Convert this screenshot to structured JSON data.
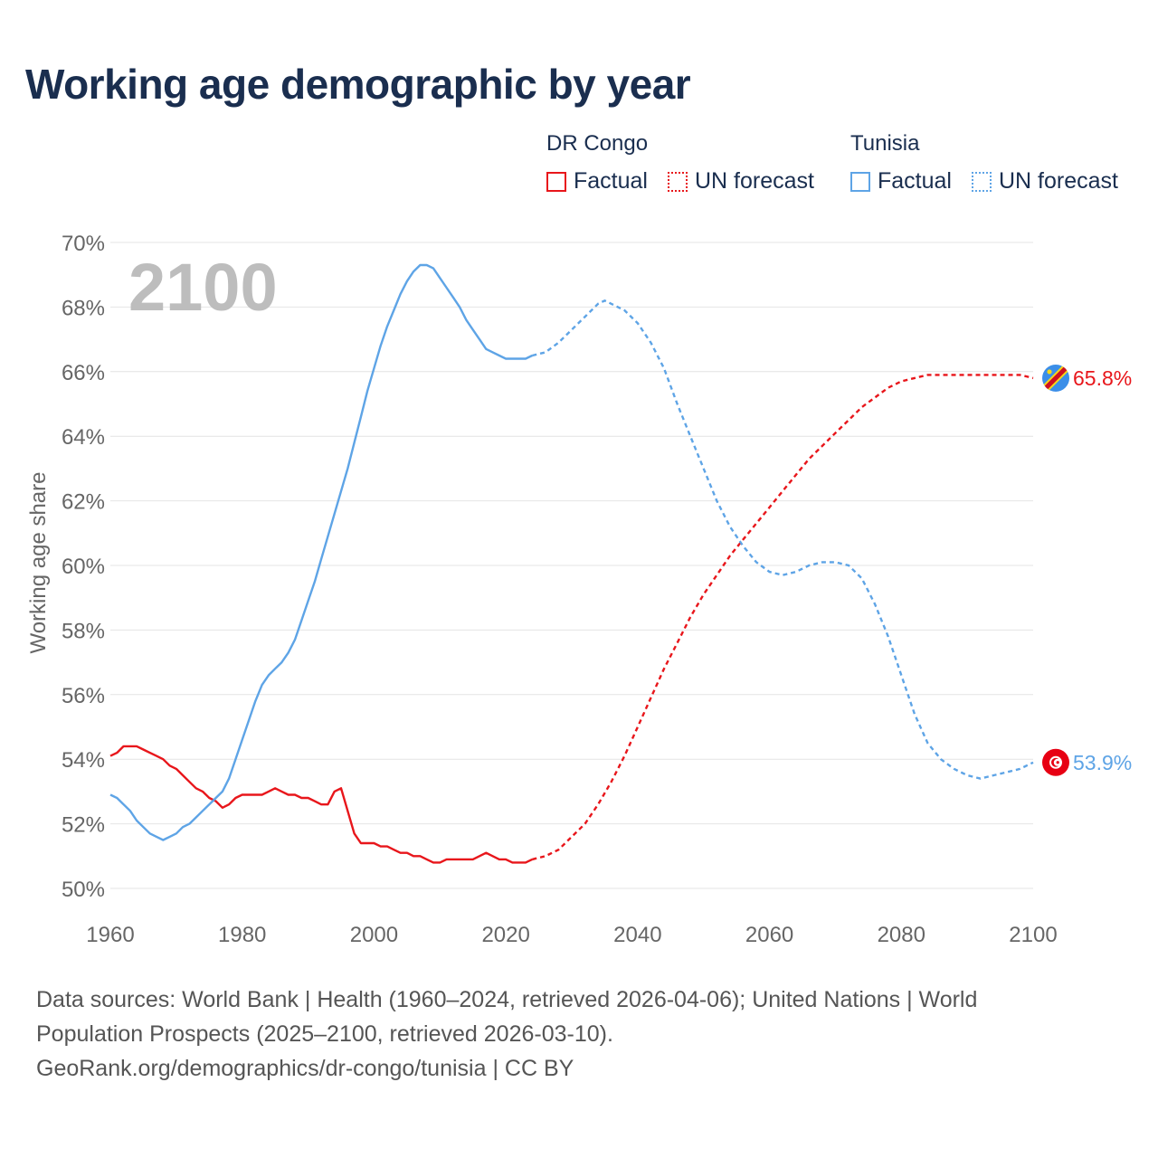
{
  "title": "Working age demographic by year",
  "legend": {
    "groups": [
      {
        "name": "DR Congo",
        "color": "#e8161b",
        "items": [
          {
            "label": "Factual",
            "style": "solid"
          },
          {
            "label": "UN forecast",
            "style": "dotted"
          }
        ]
      },
      {
        "name": "Tunisia",
        "color": "#5ea4e6",
        "items": [
          {
            "label": "Factual",
            "style": "solid"
          },
          {
            "label": "UN forecast",
            "style": "dotted"
          }
        ]
      }
    ]
  },
  "year_watermark": "2100",
  "sources": {
    "line1": "Data sources: World Bank | Health (1960–2024, retrieved 2026-04-06); United Nations | World",
    "line2": "Population Prospects (2025–2100, retrieved 2026-03-10).",
    "line3": "GeoRank.org/demographics/dr-congo/tunisia | CC BY"
  },
  "chart_data": {
    "type": "line",
    "title": "Working age demographic by year",
    "xlabel": "",
    "ylabel": "Working age share",
    "xlim": [
      1960,
      2100
    ],
    "ylim": [
      50,
      70
    ],
    "x_ticks": [
      1960,
      1980,
      2000,
      2020,
      2040,
      2060,
      2080,
      2100
    ],
    "y_ticks": [
      50,
      52,
      54,
      56,
      58,
      60,
      62,
      64,
      66,
      68,
      70
    ],
    "y_tick_suffix": "%",
    "grid": true,
    "forecast_start": 2024,
    "series": [
      {
        "name": "DR Congo",
        "color": "#e8161b",
        "end_label": "65.8%",
        "flag": "dr-congo-flag",
        "factual": [
          [
            1960,
            54.1
          ],
          [
            1961,
            54.2
          ],
          [
            1962,
            54.4
          ],
          [
            1963,
            54.4
          ],
          [
            1964,
            54.4
          ],
          [
            1965,
            54.3
          ],
          [
            1966,
            54.2
          ],
          [
            1967,
            54.1
          ],
          [
            1968,
            54.0
          ],
          [
            1969,
            53.8
          ],
          [
            1970,
            53.7
          ],
          [
            1971,
            53.5
          ],
          [
            1972,
            53.3
          ],
          [
            1973,
            53.1
          ],
          [
            1974,
            53.0
          ],
          [
            1975,
            52.8
          ],
          [
            1976,
            52.7
          ],
          [
            1977,
            52.5
          ],
          [
            1978,
            52.6
          ],
          [
            1979,
            52.8
          ],
          [
            1980,
            52.9
          ],
          [
            1981,
            52.9
          ],
          [
            1982,
            52.9
          ],
          [
            1983,
            52.9
          ],
          [
            1984,
            53.0
          ],
          [
            1985,
            53.1
          ],
          [
            1986,
            53.0
          ],
          [
            1987,
            52.9
          ],
          [
            1988,
            52.9
          ],
          [
            1989,
            52.8
          ],
          [
            1990,
            52.8
          ],
          [
            1991,
            52.7
          ],
          [
            1992,
            52.6
          ],
          [
            1993,
            52.6
          ],
          [
            1994,
            53.0
          ],
          [
            1995,
            53.1
          ],
          [
            1996,
            52.4
          ],
          [
            1997,
            51.7
          ],
          [
            1998,
            51.4
          ],
          [
            1999,
            51.4
          ],
          [
            2000,
            51.4
          ],
          [
            2001,
            51.3
          ],
          [
            2002,
            51.3
          ],
          [
            2003,
            51.2
          ],
          [
            2004,
            51.1
          ],
          [
            2005,
            51.1
          ],
          [
            2006,
            51.0
          ],
          [
            2007,
            51.0
          ],
          [
            2008,
            50.9
          ],
          [
            2009,
            50.8
          ],
          [
            2010,
            50.8
          ],
          [
            2011,
            50.9
          ],
          [
            2012,
            50.9
          ],
          [
            2013,
            50.9
          ],
          [
            2014,
            50.9
          ],
          [
            2015,
            50.9
          ],
          [
            2016,
            51.0
          ],
          [
            2017,
            51.1
          ],
          [
            2018,
            51.0
          ],
          [
            2019,
            50.9
          ],
          [
            2020,
            50.9
          ],
          [
            2021,
            50.8
          ],
          [
            2022,
            50.8
          ],
          [
            2023,
            50.8
          ],
          [
            2024,
            50.9
          ]
        ],
        "forecast": [
          [
            2024,
            50.9
          ],
          [
            2026,
            51.0
          ],
          [
            2028,
            51.2
          ],
          [
            2030,
            51.6
          ],
          [
            2032,
            52.0
          ],
          [
            2034,
            52.6
          ],
          [
            2036,
            53.3
          ],
          [
            2038,
            54.1
          ],
          [
            2040,
            55.0
          ],
          [
            2042,
            55.9
          ],
          [
            2044,
            56.8
          ],
          [
            2046,
            57.6
          ],
          [
            2048,
            58.4
          ],
          [
            2050,
            59.1
          ],
          [
            2052,
            59.7
          ],
          [
            2054,
            60.3
          ],
          [
            2056,
            60.8
          ],
          [
            2058,
            61.3
          ],
          [
            2060,
            61.8
          ],
          [
            2062,
            62.3
          ],
          [
            2064,
            62.8
          ],
          [
            2066,
            63.3
          ],
          [
            2068,
            63.7
          ],
          [
            2070,
            64.1
          ],
          [
            2072,
            64.5
          ],
          [
            2074,
            64.9
          ],
          [
            2076,
            65.2
          ],
          [
            2078,
            65.5
          ],
          [
            2080,
            65.7
          ],
          [
            2082,
            65.8
          ],
          [
            2084,
            65.9
          ],
          [
            2086,
            65.9
          ],
          [
            2088,
            65.9
          ],
          [
            2090,
            65.9
          ],
          [
            2092,
            65.9
          ],
          [
            2094,
            65.9
          ],
          [
            2096,
            65.9
          ],
          [
            2098,
            65.9
          ],
          [
            2100,
            65.8
          ]
        ]
      },
      {
        "name": "Tunisia",
        "color": "#5ea4e6",
        "end_label": "53.9%",
        "flag": "tunisia-flag",
        "factual": [
          [
            1960,
            52.9
          ],
          [
            1961,
            52.8
          ],
          [
            1962,
            52.6
          ],
          [
            1963,
            52.4
          ],
          [
            1964,
            52.1
          ],
          [
            1965,
            51.9
          ],
          [
            1966,
            51.7
          ],
          [
            1967,
            51.6
          ],
          [
            1968,
            51.5
          ],
          [
            1969,
            51.6
          ],
          [
            1970,
            51.7
          ],
          [
            1971,
            51.9
          ],
          [
            1972,
            52.0
          ],
          [
            1973,
            52.2
          ],
          [
            1974,
            52.4
          ],
          [
            1975,
            52.6
          ],
          [
            1976,
            52.8
          ],
          [
            1977,
            53.0
          ],
          [
            1978,
            53.4
          ],
          [
            1979,
            54.0
          ],
          [
            1980,
            54.6
          ],
          [
            1981,
            55.2
          ],
          [
            1982,
            55.8
          ],
          [
            1983,
            56.3
          ],
          [
            1984,
            56.6
          ],
          [
            1985,
            56.8
          ],
          [
            1986,
            57.0
          ],
          [
            1987,
            57.3
          ],
          [
            1988,
            57.7
          ],
          [
            1989,
            58.3
          ],
          [
            1990,
            58.9
          ],
          [
            1991,
            59.5
          ],
          [
            1992,
            60.2
          ],
          [
            1993,
            60.9
          ],
          [
            1994,
            61.6
          ],
          [
            1995,
            62.3
          ],
          [
            1996,
            63.0
          ],
          [
            1997,
            63.8
          ],
          [
            1998,
            64.6
          ],
          [
            1999,
            65.4
          ],
          [
            2000,
            66.1
          ],
          [
            2001,
            66.8
          ],
          [
            2002,
            67.4
          ],
          [
            2003,
            67.9
          ],
          [
            2004,
            68.4
          ],
          [
            2005,
            68.8
          ],
          [
            2006,
            69.1
          ],
          [
            2007,
            69.3
          ],
          [
            2008,
            69.3
          ],
          [
            2009,
            69.2
          ],
          [
            2010,
            68.9
          ],
          [
            2011,
            68.6
          ],
          [
            2012,
            68.3
          ],
          [
            2013,
            68.0
          ],
          [
            2014,
            67.6
          ],
          [
            2015,
            67.3
          ],
          [
            2016,
            67.0
          ],
          [
            2017,
            66.7
          ],
          [
            2018,
            66.6
          ],
          [
            2019,
            66.5
          ],
          [
            2020,
            66.4
          ],
          [
            2021,
            66.4
          ],
          [
            2022,
            66.4
          ],
          [
            2023,
            66.4
          ],
          [
            2024,
            66.5
          ]
        ],
        "forecast": [
          [
            2024,
            66.5
          ],
          [
            2026,
            66.6
          ],
          [
            2028,
            66.9
          ],
          [
            2030,
            67.3
          ],
          [
            2032,
            67.7
          ],
          [
            2034,
            68.1
          ],
          [
            2035,
            68.2
          ],
          [
            2036,
            68.1
          ],
          [
            2038,
            67.9
          ],
          [
            2040,
            67.5
          ],
          [
            2042,
            66.9
          ],
          [
            2044,
            66.1
          ],
          [
            2046,
            65.0
          ],
          [
            2048,
            64.0
          ],
          [
            2050,
            63.0
          ],
          [
            2052,
            62.0
          ],
          [
            2054,
            61.2
          ],
          [
            2056,
            60.6
          ],
          [
            2058,
            60.1
          ],
          [
            2060,
            59.8
          ],
          [
            2062,
            59.7
          ],
          [
            2064,
            59.8
          ],
          [
            2066,
            60.0
          ],
          [
            2068,
            60.1
          ],
          [
            2070,
            60.1
          ],
          [
            2072,
            60.0
          ],
          [
            2074,
            59.6
          ],
          [
            2076,
            58.8
          ],
          [
            2078,
            57.8
          ],
          [
            2080,
            56.6
          ],
          [
            2082,
            55.4
          ],
          [
            2084,
            54.5
          ],
          [
            2086,
            54.0
          ],
          [
            2088,
            53.7
          ],
          [
            2090,
            53.5
          ],
          [
            2092,
            53.4
          ],
          [
            2094,
            53.5
          ],
          [
            2096,
            53.6
          ],
          [
            2098,
            53.7
          ],
          [
            2100,
            53.9
          ]
        ]
      }
    ]
  }
}
